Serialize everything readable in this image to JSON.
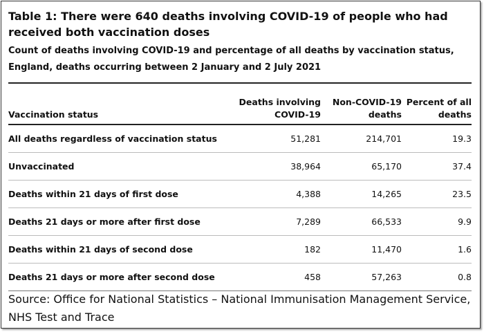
{
  "table": {
    "title": "Table 1: There were 640 deaths involving COVID-19 of people who had received both vaccination doses",
    "subtitle": "Count of deaths involving COVID-19 and percentage of all deaths by vaccination status, England, deaths occurring between 2 January and 2 July 2021",
    "headers": {
      "status": "Vaccination status",
      "covid": "Deaths involving COVID-19",
      "noncovid": "Non-COVID-19 deaths",
      "percent": "Percent of all deaths"
    },
    "rows": [
      {
        "status": "All deaths regardless of vaccination status",
        "covid": "51,281",
        "noncovid": "214,701",
        "percent": "19.3"
      },
      {
        "status": "Unvaccinated",
        "covid": "38,964",
        "noncovid": "65,170",
        "percent": "37.4"
      },
      {
        "status": "Deaths within 21 days of first dose",
        "covid": "4,388",
        "noncovid": "14,265",
        "percent": "23.5"
      },
      {
        "status": "Deaths 21 days or more after first dose",
        "covid": "7,289",
        "noncovid": "66,533",
        "percent": "9.9"
      },
      {
        "status": "Deaths within 21 days of second dose",
        "covid": "182",
        "noncovid": "11,470",
        "percent": "1.6"
      },
      {
        "status": "Deaths 21 days or more after second dose",
        "covid": "458",
        "noncovid": "57,263",
        "percent": "0.8"
      }
    ],
    "source": "Source: Office for National Statistics – National Immunisation Management Service, NHS Test and Trace"
  }
}
